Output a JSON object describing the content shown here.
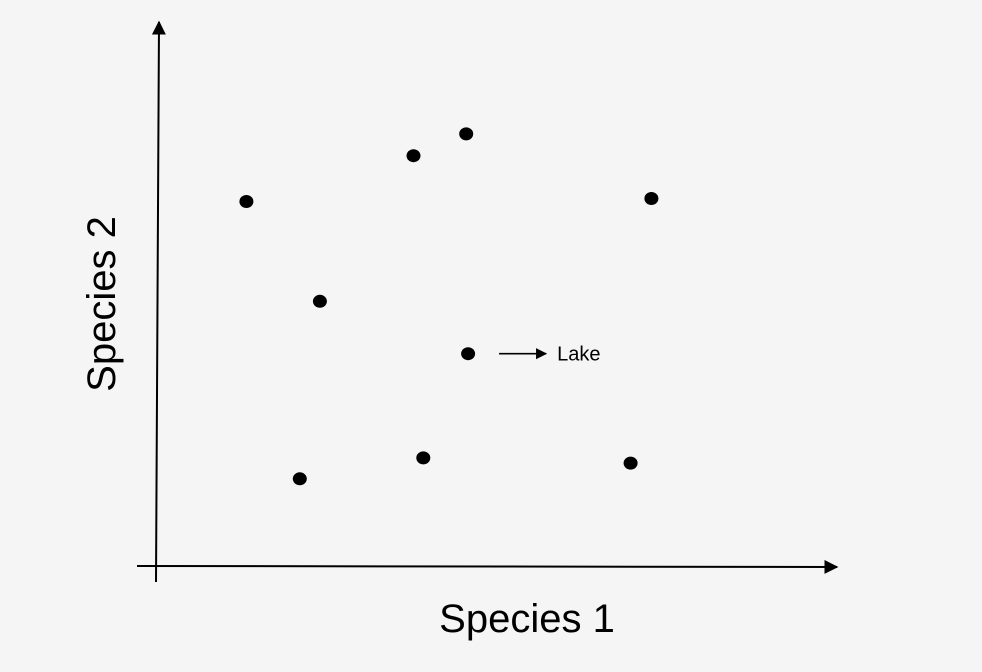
{
  "chart_data": {
    "type": "scatter",
    "xlabel": "Species 1",
    "ylabel": "Species 2",
    "xlim": [
      0,
      100
    ],
    "ylim": [
      0,
      100
    ],
    "points": [
      {
        "x": 13.3,
        "y": 83.6
      },
      {
        "x": 24.6,
        "y": 60.7
      },
      {
        "x": 39.0,
        "y": 94.1
      },
      {
        "x": 47.1,
        "y": 99.1
      },
      {
        "x": 75.6,
        "y": 84.3
      },
      {
        "x": 47.4,
        "y": 48.7
      },
      {
        "x": 21.5,
        "y": 20.0
      },
      {
        "x": 40.5,
        "y": 24.8
      },
      {
        "x": 72.4,
        "y": 23.6
      }
    ],
    "annotation": {
      "text": "Lake",
      "point_index": 5
    },
    "grid": false,
    "legend": "none",
    "colors": {
      "background": "#f5f5f5",
      "ink": "#000000"
    }
  }
}
